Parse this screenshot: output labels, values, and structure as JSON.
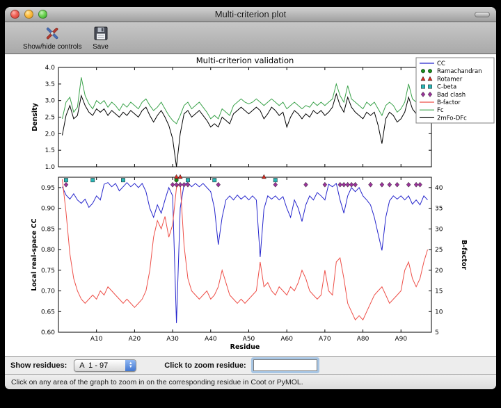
{
  "window": {
    "title": "Multi-criterion plot"
  },
  "toolbar": {
    "items": [
      {
        "label": "Show/hide controls",
        "icon": "tools-icon"
      },
      {
        "label": "Save",
        "icon": "save-icon"
      }
    ]
  },
  "controls": {
    "show_residues_label": "Show residues:",
    "chain_selector_value": "A  1 - 97",
    "zoom_residue_label": "Click to zoom residue:",
    "zoom_residue_value": ""
  },
  "status_bar": {
    "message": "Click on any area of the graph to zoom in on the corresponding residue in Coot or PyMOL."
  },
  "chart_data": [
    {
      "type": "line",
      "title": "Multi-criterion validation",
      "ylabel": "Density",
      "ylim": [
        1.0,
        4.0
      ],
      "yticks": [
        1.0,
        1.5,
        2.0,
        2.5,
        3.0,
        3.5,
        4.0
      ],
      "xlim": [
        0,
        98
      ],
      "grid": false,
      "series": [
        {
          "name": "Fc",
          "color": "#3aa24a",
          "x_start": 1,
          "values": [
            2.45,
            2.95,
            3.1,
            2.65,
            2.8,
            3.7,
            3.15,
            2.9,
            2.75,
            3.0,
            2.9,
            3.0,
            2.8,
            2.95,
            2.85,
            2.7,
            2.9,
            2.8,
            2.95,
            2.85,
            2.75,
            2.95,
            3.05,
            2.85,
            2.7,
            2.8,
            2.95,
            2.75,
            2.55,
            2.4,
            2.3,
            2.55,
            2.85,
            2.95,
            2.75,
            2.85,
            2.95,
            2.8,
            2.65,
            2.45,
            2.55,
            2.45,
            2.75,
            2.65,
            2.55,
            2.85,
            2.95,
            3.05,
            2.95,
            2.9,
            2.95,
            3.05,
            2.95,
            2.85,
            2.95,
            3.05,
            2.95,
            2.85,
            2.95,
            2.75,
            2.85,
            2.95,
            2.85,
            2.75,
            2.85,
            2.8,
            2.95,
            2.85,
            2.95,
            2.85,
            2.95,
            3.05,
            3.5,
            3.15,
            2.95,
            3.45,
            3.05,
            2.95,
            2.85,
            2.75,
            2.95,
            2.85,
            2.95,
            2.75,
            2.55,
            2.85,
            2.95,
            2.85,
            2.65,
            2.75,
            2.95,
            3.5,
            3.05,
            2.95,
            3.15,
            3.35,
            3.3
          ]
        },
        {
          "name": "2mFo-DFc",
          "color": "#000000",
          "x_start": 1,
          "values": [
            1.95,
            2.55,
            2.85,
            2.45,
            2.55,
            3.15,
            2.85,
            2.65,
            2.55,
            2.75,
            2.65,
            2.75,
            2.55,
            2.7,
            2.6,
            2.5,
            2.65,
            2.55,
            2.7,
            2.6,
            2.5,
            2.7,
            2.8,
            2.55,
            2.35,
            2.55,
            2.7,
            2.5,
            2.25,
            1.85,
            1.0,
            2.0,
            2.6,
            2.7,
            2.5,
            2.6,
            2.7,
            2.55,
            2.4,
            2.2,
            2.3,
            2.2,
            2.5,
            2.4,
            2.3,
            2.6,
            2.7,
            2.8,
            2.7,
            2.6,
            2.7,
            2.8,
            2.7,
            2.45,
            2.6,
            2.8,
            2.7,
            2.55,
            2.65,
            2.2,
            2.5,
            2.7,
            2.6,
            2.45,
            2.6,
            2.5,
            2.7,
            2.6,
            2.7,
            2.55,
            2.65,
            2.8,
            3.2,
            2.85,
            2.65,
            3.1,
            2.8,
            2.65,
            2.55,
            2.45,
            2.65,
            2.55,
            2.65,
            2.25,
            1.7,
            2.45,
            2.65,
            2.55,
            2.35,
            2.45,
            2.65,
            3.1,
            2.75,
            2.6,
            2.85,
            3.0,
            3.0
          ]
        }
      ]
    },
    {
      "type": "line-scatter",
      "xlabel": "Residue",
      "ylabel_left": "Local real-space CC",
      "ylabel_right": "B-factor",
      "ylim_left": [
        0.6,
        0.975
      ],
      "ylim_right": [
        5,
        42.5
      ],
      "yticks_left": [
        0.6,
        0.65,
        0.7,
        0.75,
        0.8,
        0.85,
        0.9,
        0.95
      ],
      "yticks_right": [
        5,
        10,
        15,
        20,
        25,
        30,
        35,
        40
      ],
      "xticks": [
        {
          "x": 10,
          "label": "A10"
        },
        {
          "x": 20,
          "label": "A20"
        },
        {
          "x": 30,
          "label": "A30"
        },
        {
          "x": 40,
          "label": "A40"
        },
        {
          "x": 50,
          "label": "A50"
        },
        {
          "x": 60,
          "label": "A60"
        },
        {
          "x": 70,
          "label": "A70"
        },
        {
          "x": 80,
          "label": "A80"
        },
        {
          "x": 90,
          "label": "A90"
        }
      ],
      "grid": false,
      "series": [
        {
          "name": "CC",
          "axis": "left",
          "color": "#2525cc",
          "x_start": 1,
          "values": [
            0.952,
            0.932,
            0.922,
            0.935,
            0.92,
            0.912,
            0.922,
            0.902,
            0.912,
            0.93,
            0.92,
            0.958,
            0.962,
            0.952,
            0.96,
            0.942,
            0.952,
            0.962,
            0.952,
            0.96,
            0.95,
            0.96,
            0.94,
            0.9,
            0.878,
            0.908,
            0.888,
            0.92,
            0.95,
            0.93,
            0.622,
            0.9,
            0.958,
            0.962,
            0.952,
            0.96,
            0.952,
            0.96,
            0.95,
            0.94,
            0.9,
            0.812,
            0.878,
            0.92,
            0.93,
            0.92,
            0.932,
            0.922,
            0.93,
            0.92,
            0.93,
            0.92,
            0.782,
            0.898,
            0.93,
            0.922,
            0.93,
            0.92,
            0.928,
            0.9,
            0.878,
            0.92,
            0.9,
            0.868,
            0.908,
            0.93,
            0.92,
            0.938,
            0.93,
            0.92,
            0.958,
            0.952,
            0.96,
            0.92,
            0.888,
            0.93,
            0.95,
            0.94,
            0.95,
            0.93,
            0.92,
            0.908,
            0.878,
            0.838,
            0.798,
            0.878,
            0.918,
            0.93,
            0.922,
            0.93,
            0.92,
            0.93,
            0.91,
            0.92,
            0.908,
            0.93,
            0.92
          ]
        },
        {
          "name": "B-factor",
          "axis": "right",
          "color": "#ee4f48",
          "x_start": 1,
          "values": [
            42,
            34,
            24,
            18,
            15,
            13,
            12,
            13,
            14,
            13,
            15,
            14,
            16,
            15,
            14,
            13,
            12,
            13,
            12,
            11,
            12,
            13,
            15,
            20,
            28,
            32,
            30,
            33,
            28,
            31,
            40,
            41,
            26,
            18,
            15,
            14,
            13,
            14,
            15,
            13,
            14,
            16,
            20,
            17,
            14,
            13,
            12,
            13,
            12,
            13,
            14,
            15,
            22,
            16,
            17,
            15,
            14,
            16,
            15,
            14,
            16,
            15,
            17,
            20,
            18,
            15,
            14,
            13,
            14,
            20,
            15,
            14,
            22,
            23,
            18,
            12,
            10,
            8,
            9,
            8,
            10,
            12,
            14,
            15,
            16,
            14,
            12,
            13,
            14,
            15,
            20,
            22,
            18,
            16,
            18,
            22,
            25
          ]
        }
      ],
      "markers": [
        {
          "name": "Ramachandran",
          "shape": "circle",
          "color": "#1a8c1a",
          "y": 0.968,
          "residues": [
            31
          ]
        },
        {
          "name": "Rotamer",
          "shape": "triangle",
          "color": "#d42a20",
          "y": 0.976,
          "residues": [
            31,
            32,
            54
          ]
        },
        {
          "name": "C-beta",
          "shape": "square",
          "color": "#29b6b6",
          "y": 0.968,
          "residues": [
            2,
            9,
            17,
            34,
            41,
            57
          ]
        },
        {
          "name": "Bad clash",
          "shape": "diamond",
          "color": "#993399",
          "y": 0.957,
          "residues": [
            2,
            30,
            31,
            32,
            33,
            34,
            42,
            57,
            65,
            70,
            74,
            75,
            76,
            77,
            78,
            82,
            85,
            87,
            89,
            92,
            94,
            95
          ]
        }
      ],
      "legend": [
        {
          "label": "CC",
          "type": "line",
          "color": "#2525cc"
        },
        {
          "label": "Ramachandran",
          "type": "circle",
          "color": "#1a8c1a"
        },
        {
          "label": "Rotamer",
          "type": "triangle",
          "color": "#d42a20"
        },
        {
          "label": "C-beta",
          "type": "square",
          "color": "#29b6b6"
        },
        {
          "label": "Bad clash",
          "type": "diamond",
          "color": "#993399"
        },
        {
          "label": "B-factor",
          "type": "line",
          "color": "#ee4f48"
        },
        {
          "label": "Fc",
          "type": "line",
          "color": "#3aa24a"
        },
        {
          "label": "2mFo-DFc",
          "type": "line",
          "color": "#000000"
        }
      ]
    }
  ]
}
